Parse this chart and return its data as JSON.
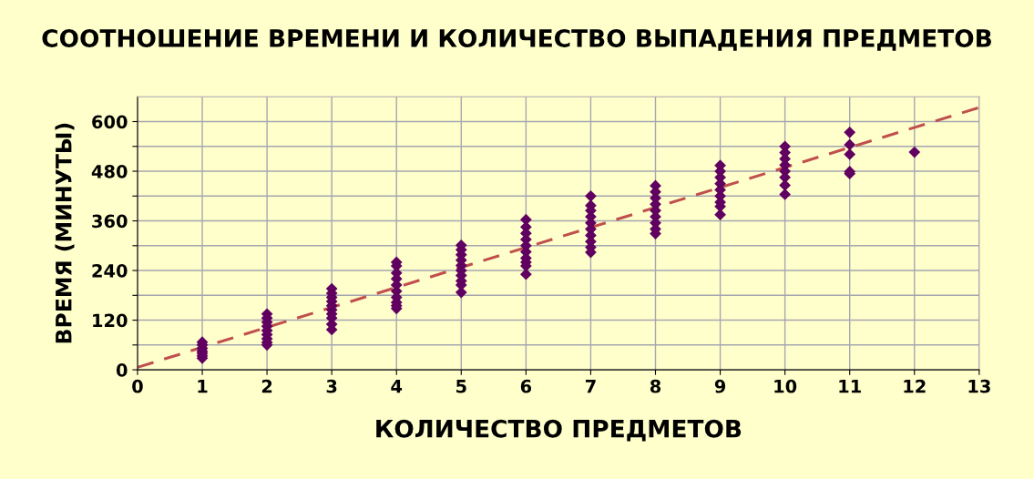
{
  "chart_data": {
    "type": "scatter",
    "title": "СООТНОШЕНИЕ ВРЕМЕНИ И КОЛИЧЕСТВО ВЫПАДЕНИЯ ПРЕДМЕТОВ",
    "xlabel": "КОЛИЧЕСТВО ПРЕДМЕТОВ",
    "ylabel": "ВРЕМЯ (МИНУТЫ)",
    "xlim": [
      0,
      13
    ],
    "xticks": [
      0,
      1,
      2,
      3,
      4,
      5,
      6,
      7,
      8,
      9,
      10,
      11,
      12,
      13
    ],
    "ylim": [
      0,
      660
    ],
    "yticks": [
      0,
      {
        "value": 60,
        "label": null
      },
      120,
      {
        "value": 180,
        "label": null
      },
      240,
      {
        "value": 300,
        "label": null
      },
      360,
      {
        "value": 420,
        "label": null
      },
      480,
      {
        "value": 540,
        "label": null
      },
      600
    ],
    "grid": true,
    "legend": false,
    "marker": "diamond",
    "series": [
      {
        "color": "#600060",
        "x": [
          1,
          1,
          1,
          1,
          1,
          1,
          1,
          2,
          2,
          2,
          2,
          2,
          2,
          2,
          2,
          2,
          3,
          3,
          3,
          3,
          3,
          3,
          3,
          3,
          3,
          3,
          4,
          4,
          4,
          4,
          4,
          4,
          4,
          4,
          4,
          4,
          5,
          5,
          5,
          5,
          5,
          5,
          5,
          5,
          5,
          5,
          6,
          6,
          6,
          6,
          6,
          6,
          6,
          6,
          6,
          6,
          7,
          7,
          7,
          7,
          7,
          7,
          7,
          7,
          7,
          7,
          8,
          8,
          8,
          8,
          8,
          8,
          8,
          8,
          8,
          9,
          9,
          9,
          9,
          9,
          9,
          9,
          9,
          9,
          10,
          10,
          10,
          10,
          10,
          10,
          10,
          10,
          11,
          11,
          11,
          11,
          11,
          12
        ],
        "values": [
          67,
          60,
          52,
          45,
          40,
          34,
          28,
          135,
          125,
          115,
          105,
          95,
          85,
          75,
          66,
          60,
          196,
          185,
          175,
          165,
          155,
          145,
          135,
          125,
          110,
          97,
          260,
          251,
          234,
          220,
          205,
          190,
          175,
          163,
          155,
          148,
          301,
          290,
          278,
          265,
          252,
          240,
          228,
          215,
          205,
          187,
          363,
          345,
          330,
          315,
          300,
          285,
          270,
          260,
          251,
          231,
          420,
          397,
          385,
          370,
          355,
          340,
          325,
          310,
          296,
          284,
          445,
          430,
          415,
          400,
          385,
          370,
          355,
          340,
          329,
          494,
          480,
          465,
          450,
          435,
          420,
          405,
          395,
          375,
          540,
          525,
          510,
          495,
          480,
          465,
          446,
          424,
          574,
          544,
          521,
          479,
          474,
          526
        ]
      },
      {
        "type": "line",
        "color": "#c0504d",
        "line_style": "dashed",
        "marker": "none",
        "x": [
          0,
          13
        ],
        "values": [
          6,
          634
        ]
      }
    ]
  }
}
